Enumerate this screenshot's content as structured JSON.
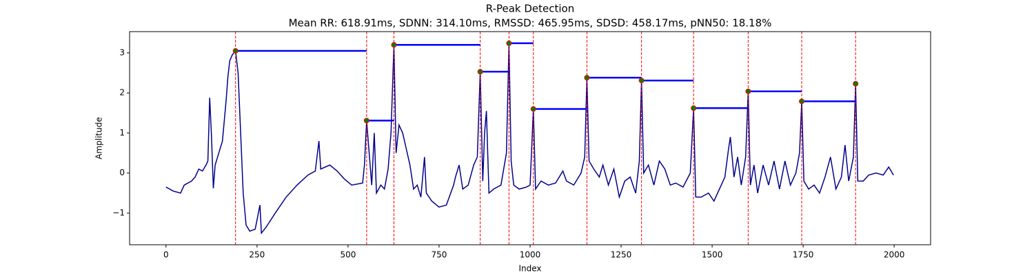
{
  "chart_data": {
    "type": "line",
    "title": "R-Peak Detection",
    "subtitle": "Mean RR: 618.91ms, SDNN: 314.10ms, RMSSD: 465.95ms, SDSD: 458.17ms, pNN50: 18.18%",
    "x_label": "Index",
    "y_label": "Amplitude",
    "xlim": [
      -100,
      2100
    ],
    "ylim": [
      -1.79,
      3.53
    ],
    "xticks": [
      0,
      250,
      500,
      750,
      1000,
      1250,
      1500,
      1750,
      2000
    ],
    "yticks": [
      {
        "value": -1,
        "label": "−1"
      },
      0,
      1,
      2,
      3
    ],
    "series": [
      {
        "color": "#00008b",
        "x": [
          0,
          20,
          40,
          50,
          70,
          80,
          90,
          100,
          110,
          115,
          120,
          125,
          130,
          135,
          145,
          155,
          160,
          165,
          170,
          175,
          182,
          191,
          198,
          205,
          212,
          220,
          230,
          245,
          258,
          262,
          275,
          300,
          330,
          360,
          390,
          410,
          420,
          425,
          450,
          470,
          490,
          510,
          540,
          545,
          551,
          558,
          565,
          572,
          578,
          590,
          600,
          610,
          618,
          626,
          632,
          640,
          650,
          660,
          670,
          680,
          690,
          700,
          710,
          715,
          730,
          750,
          770,
          790,
          795,
          805,
          815,
          830,
          845,
          855,
          863,
          870,
          875,
          880,
          887,
          900,
          920,
          935,
          942,
          948,
          955,
          970,
          990,
          1000,
          1009,
          1015,
          1030,
          1050,
          1070,
          1090,
          1100,
          1120,
          1140,
          1150,
          1156,
          1162,
          1175,
          1190,
          1200,
          1215,
          1230,
          1245,
          1260,
          1275,
          1290,
          1300,
          1306,
          1312,
          1325,
          1340,
          1355,
          1370,
          1385,
          1400,
          1420,
          1440,
          1449,
          1455,
          1470,
          1490,
          1505,
          1520,
          1535,
          1545,
          1550,
          1560,
          1570,
          1580,
          1592,
          1599,
          1605,
          1615,
          1625,
          1640,
          1655,
          1670,
          1685,
          1700,
          1715,
          1730,
          1740,
          1746,
          1752,
          1765,
          1780,
          1795,
          1810,
          1825,
          1840,
          1855,
          1865,
          1875,
          1888,
          1894,
          1900,
          1915,
          1930,
          1950,
          1970,
          1985,
          1998
        ],
        "values": [
          -0.35,
          -0.45,
          -0.5,
          -0.3,
          -0.2,
          -0.1,
          0.1,
          0.05,
          0.2,
          0.3,
          1.88,
          0.9,
          -0.38,
          0.2,
          0.5,
          0.8,
          1.3,
          1.8,
          2.4,
          2.8,
          2.95,
          3.05,
          2.5,
          1.0,
          -0.5,
          -1.3,
          -1.45,
          -1.4,
          -0.8,
          -1.5,
          -1.35,
          -1.0,
          -0.6,
          -0.3,
          -0.05,
          0.05,
          0.8,
          0.1,
          0.2,
          0.05,
          -0.15,
          -0.3,
          -0.25,
          0.2,
          1.31,
          0.5,
          -0.3,
          1.0,
          -0.5,
          -0.3,
          -0.4,
          0.1,
          1.0,
          3.2,
          0.5,
          1.2,
          1.0,
          0.6,
          0.2,
          -0.4,
          -0.3,
          -0.6,
          0.4,
          -0.5,
          -0.7,
          -0.85,
          -0.8,
          -0.3,
          -0.1,
          0.2,
          -0.4,
          -0.3,
          0.2,
          0.4,
          2.53,
          -0.2,
          1.0,
          1.55,
          -0.5,
          -0.4,
          -0.3,
          0.5,
          3.24,
          0.3,
          -0.3,
          -0.4,
          -0.35,
          -0.3,
          1.6,
          -0.4,
          -0.2,
          -0.3,
          -0.25,
          0.05,
          -0.2,
          -0.3,
          0.0,
          0.4,
          2.38,
          0.3,
          0.1,
          -0.1,
          0.2,
          -0.3,
          0.1,
          -0.6,
          -0.2,
          -0.1,
          -0.5,
          0.3,
          2.31,
          0.0,
          0.2,
          -0.3,
          0.3,
          0.1,
          -0.3,
          -0.25,
          -0.35,
          0.0,
          1.62,
          -0.6,
          -0.6,
          -0.5,
          -0.7,
          -0.4,
          -0.1,
          0.6,
          0.9,
          -0.1,
          0.4,
          -0.3,
          0.4,
          2.04,
          -0.3,
          0.2,
          -0.5,
          0.2,
          -0.3,
          0.3,
          -0.4,
          0.3,
          -0.3,
          0.0,
          0.5,
          1.79,
          -0.2,
          -0.4,
          -0.3,
          -0.5,
          -0.1,
          0.4,
          -0.4,
          -0.1,
          0.7,
          -0.2,
          0.4,
          2.23,
          -0.2,
          -0.2,
          -0.05,
          0.0,
          -0.05,
          0.15,
          -0.05
        ]
      }
    ],
    "peaks": {
      "color": "green",
      "edge_color": "red",
      "line_color": "blue",
      "marker_line_color": "red",
      "x": [
        191,
        551,
        626,
        863,
        942,
        1009,
        1156,
        1306,
        1449,
        1599,
        1746,
        1894
      ],
      "values": [
        3.05,
        1.31,
        3.2,
        2.53,
        3.24,
        1.6,
        2.38,
        2.31,
        1.62,
        2.04,
        1.79,
        2.23
      ]
    }
  }
}
